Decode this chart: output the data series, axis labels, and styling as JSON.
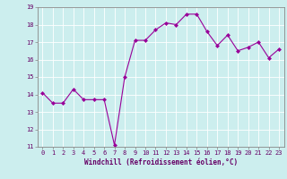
{
  "x": [
    0,
    1,
    2,
    3,
    4,
    5,
    6,
    7,
    8,
    9,
    10,
    11,
    12,
    13,
    14,
    15,
    16,
    17,
    18,
    19,
    20,
    21,
    22,
    23
  ],
  "y": [
    14.1,
    13.5,
    13.5,
    14.3,
    13.7,
    13.7,
    13.7,
    11.1,
    15.0,
    17.1,
    17.1,
    17.7,
    18.1,
    18.0,
    18.6,
    18.6,
    17.6,
    16.8,
    17.4,
    16.5,
    16.7,
    17.0,
    16.1,
    16.6
  ],
  "line_color": "#990099",
  "marker": "D",
  "marker_size": 2.0,
  "bg_color": "#cceeee",
  "grid_color": "#aadddd",
  "xlabel": "Windchill (Refroidissement éolien,°C)",
  "xlabel_color": "#660066",
  "tick_color": "#660066",
  "spine_color": "#888888",
  "ylim": [
    11,
    19
  ],
  "xlim": [
    -0.5,
    23.5
  ],
  "yticks": [
    11,
    12,
    13,
    14,
    15,
    16,
    17,
    18,
    19
  ],
  "xticks": [
    0,
    1,
    2,
    3,
    4,
    5,
    6,
    7,
    8,
    9,
    10,
    11,
    12,
    13,
    14,
    15,
    16,
    17,
    18,
    19,
    20,
    21,
    22,
    23
  ],
  "xlabel_fontsize": 5.5,
  "tick_fontsize": 5.0
}
